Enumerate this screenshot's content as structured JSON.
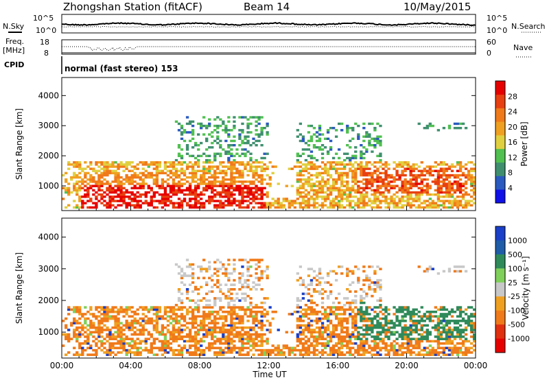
{
  "header": {
    "station": "Zhongshan Station (fitACF)",
    "beam": "Beam 14",
    "date": "10/May/2015"
  },
  "params": {
    "nsky_label": "N.Sky",
    "nsearch_label": "N.Search",
    "freq_label_line1": "Freq.",
    "freq_label_line2": "[MHz]",
    "nave_label": "Nave",
    "cpid_label": "CPID",
    "cpid_value": "normal (fast stereo) 153",
    "noise_ticks": [
      "10^5",
      "10^0"
    ],
    "freq_ticks": [
      "18",
      "8"
    ],
    "nave_ticks": [
      "60",
      "0"
    ]
  },
  "colors": {
    "velocity_scale": [
      "#1a3fc8",
      "#1f5da8",
      "#2f8a5a",
      "#7fd05a",
      "#c8c8c8",
      "#f0a020",
      "#f07a1a",
      "#e03010",
      "#e60000"
    ],
    "power_scale": [
      "#1010e8",
      "#2a5abf",
      "#3f8f6f",
      "#50c050",
      "#e0d040",
      "#f0a020",
      "#f07a1a",
      "#e84010",
      "#e60000"
    ]
  },
  "chart_data": [
    {
      "type": "heatmap",
      "name": "power",
      "ylabel": "Slant Range [km]",
      "ylim": [
        180,
        4600
      ],
      "yticks": [
        "1000",
        "2000",
        "3000",
        "4000"
      ],
      "colorbar_label": "Power [dB]",
      "colorbar_ticks": [
        "4",
        "8",
        "12",
        "16",
        "20",
        "24",
        "28"
      ],
      "clim": [
        0,
        32
      ]
    },
    {
      "type": "heatmap",
      "name": "velocity",
      "xlabel": "Time UT",
      "ylabel": "Slant Range [km]",
      "ylim": [
        180,
        4600
      ],
      "yticks": [
        "1000",
        "2000",
        "3000",
        "4000"
      ],
      "xticks": [
        "00:00",
        "04:00",
        "08:00",
        "12:00",
        "16:00",
        "20:00",
        "00:00"
      ],
      "colorbar_label": "Velocity [m s⁻¹]",
      "colorbar_ticks": [
        "1000",
        "500",
        "100",
        "25",
        "-25",
        "-100",
        "-500",
        "-1000"
      ]
    }
  ]
}
